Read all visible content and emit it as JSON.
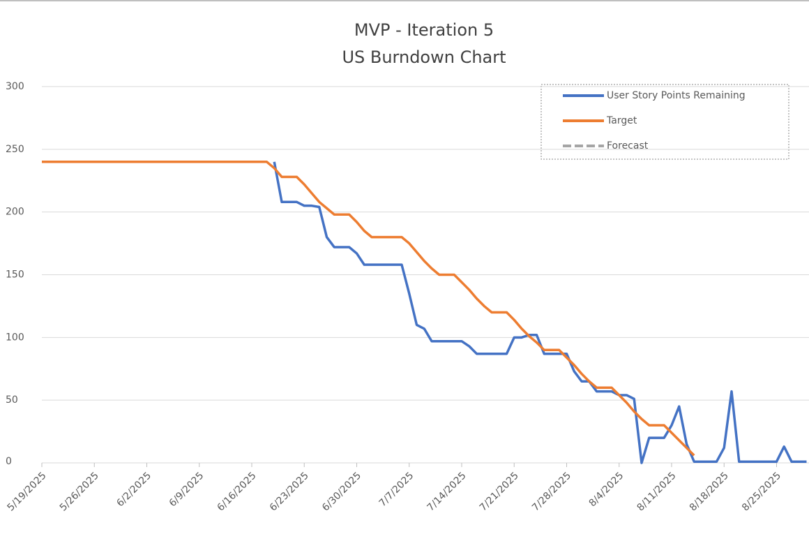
{
  "chart_data": {
    "type": "line",
    "title": "MVP - Iteration 5",
    "subtitle": "US Burndown Chart",
    "x": [
      "5/19/2025",
      "5/20/2025",
      "5/21/2025",
      "5/22/2025",
      "5/23/2025",
      "5/24/2025",
      "5/25/2025",
      "5/26/2025",
      "5/27/2025",
      "5/28/2025",
      "5/29/2025",
      "5/30/2025",
      "5/31/2025",
      "6/1/2025",
      "6/2/2025",
      "6/3/2025",
      "6/4/2025",
      "6/5/2025",
      "6/6/2025",
      "6/7/2025",
      "6/8/2025",
      "6/9/2025",
      "6/10/2025",
      "6/11/2025",
      "6/12/2025",
      "6/13/2025",
      "6/14/2025",
      "6/15/2025",
      "6/16/2025",
      "6/17/2025",
      "6/18/2025",
      "6/19/2025",
      "6/20/2025",
      "6/21/2025",
      "6/22/2025",
      "6/23/2025",
      "6/24/2025",
      "6/25/2025",
      "6/26/2025",
      "6/27/2025",
      "6/28/2025",
      "6/29/2025",
      "6/30/2025",
      "7/1/2025",
      "7/2/2025",
      "7/3/2025",
      "7/4/2025",
      "7/5/2025",
      "7/6/2025",
      "7/7/2025",
      "7/8/2025",
      "7/9/2025",
      "7/10/2025",
      "7/11/2025",
      "7/12/2025",
      "7/13/2025",
      "7/14/2025",
      "7/15/2025",
      "7/16/2025",
      "7/17/2025",
      "7/18/2025",
      "7/19/2025",
      "7/20/2025",
      "7/21/2025",
      "7/22/2025",
      "7/23/2025",
      "7/24/2025",
      "7/25/2025",
      "7/26/2025",
      "7/27/2025",
      "7/28/2025",
      "7/29/2025",
      "7/30/2025",
      "7/31/2025",
      "8/1/2025",
      "8/2/2025",
      "8/3/2025",
      "8/4/2025",
      "8/5/2025",
      "8/6/2025",
      "8/7/2025",
      "8/8/2025",
      "8/9/2025",
      "8/10/2025",
      "8/11/2025",
      "8/12/2025",
      "8/13/2025",
      "8/14/2025",
      "8/15/2025",
      "8/16/2025",
      "8/17/2025",
      "8/18/2025",
      "8/19/2025",
      "8/20/2025",
      "8/21/2025",
      "8/22/2025",
      "8/23/2025",
      "8/24/2025",
      "8/25/2025",
      "8/26/2025",
      "8/27/2025",
      "8/28/2025",
      "8/29/2025"
    ],
    "xticks": [
      "5/19/2025",
      "5/26/2025",
      "6/2/2025",
      "6/9/2025",
      "6/16/2025",
      "6/23/2025",
      "6/30/2025",
      "7/7/2025",
      "7/14/2025",
      "7/21/2025",
      "7/28/2025",
      "8/4/2025",
      "8/11/2025",
      "8/18/2025",
      "8/25/2025"
    ],
    "ylim": [
      0,
      300
    ],
    "yticks": [
      0,
      50,
      100,
      150,
      200,
      250,
      300
    ],
    "grid": true,
    "legend": "top-right",
    "series": [
      {
        "name": "User Story Points Remaining",
        "color": "#4472c4",
        "values": [
          null,
          null,
          null,
          null,
          null,
          null,
          null,
          null,
          null,
          null,
          null,
          null,
          null,
          null,
          null,
          null,
          null,
          null,
          null,
          null,
          null,
          null,
          null,
          null,
          null,
          null,
          null,
          null,
          null,
          null,
          null,
          240,
          208,
          208,
          208,
          205,
          205,
          204,
          180,
          172,
          172,
          172,
          167,
          158,
          158,
          158,
          158,
          158,
          158,
          135,
          110,
          107,
          97,
          97,
          97,
          97,
          97,
          93,
          87,
          87,
          87,
          87,
          87,
          100,
          100,
          102,
          102,
          87,
          87,
          87,
          87,
          73,
          65,
          65,
          57,
          57,
          57,
          54,
          54,
          51,
          0,
          20,
          20,
          20,
          30,
          45,
          15,
          1,
          1,
          1,
          1,
          12,
          57,
          1,
          1,
          1,
          1,
          1,
          1,
          13,
          1,
          1,
          1
        ]
      },
      {
        "name": "Target",
        "color": "#ed7d31",
        "values": [
          240,
          240,
          240,
          240,
          240,
          240,
          240,
          240,
          240,
          240,
          240,
          240,
          240,
          240,
          240,
          240,
          240,
          240,
          240,
          240,
          240,
          240,
          240,
          240,
          240,
          240,
          240,
          240,
          240,
          240,
          240,
          235,
          228,
          228,
          228,
          222,
          215,
          208,
          203,
          198,
          198,
          198,
          192,
          185,
          180,
          180,
          180,
          180,
          180,
          175,
          168,
          161,
          155,
          150,
          150,
          150,
          144,
          138,
          131,
          125,
          120,
          120,
          120,
          114,
          107,
          101,
          96,
          90,
          90,
          90,
          84,
          78,
          71,
          65,
          60,
          60,
          60,
          54,
          48,
          41,
          35,
          30,
          30,
          30,
          24,
          18,
          12,
          6,
          null,
          null,
          null,
          null,
          null,
          null,
          null,
          null,
          null,
          null,
          null,
          null,
          null,
          null,
          null
        ]
      },
      {
        "name": "Forecast",
        "color": "#a5a5a5",
        "dashed": true,
        "values": [
          null,
          null,
          null,
          null,
          null,
          null,
          null,
          null,
          null,
          null,
          null,
          null,
          null,
          null,
          null,
          null,
          null,
          null,
          null,
          null,
          null,
          null,
          null,
          null,
          null,
          null,
          null,
          null,
          null,
          null,
          null,
          null,
          null,
          null,
          null,
          null,
          null,
          null,
          null,
          null,
          null,
          null,
          null,
          null,
          null,
          null,
          null,
          null,
          null,
          null,
          null,
          null,
          null,
          null,
          null,
          null,
          null,
          null,
          null,
          null,
          null,
          null,
          null,
          null,
          null,
          null,
          null,
          null,
          null,
          null,
          null,
          null,
          null,
          null,
          null,
          null,
          null,
          null,
          null,
          null,
          null,
          null,
          null,
          null,
          null,
          null,
          null,
          null,
          null,
          null,
          null,
          null,
          null,
          null,
          null,
          null,
          null,
          null,
          null,
          null,
          null,
          null,
          null
        ]
      }
    ]
  }
}
